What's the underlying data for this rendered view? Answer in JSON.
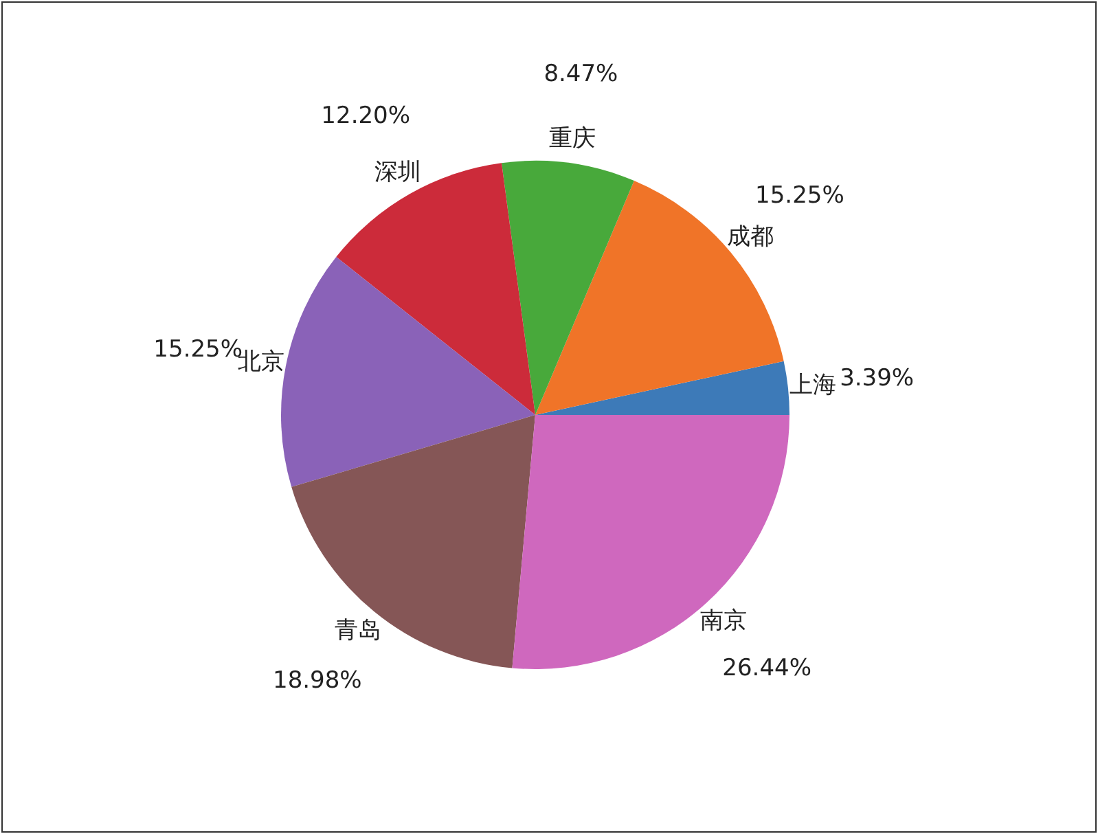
{
  "chart_data": {
    "type": "pie",
    "categories": [
      "上海",
      "成都",
      "重庆",
      "深圳",
      "北京",
      "青岛",
      "南京"
    ],
    "values": [
      3.39,
      15.25,
      8.47,
      12.2,
      15.25,
      18.98,
      26.44
    ],
    "value_labels": [
      "3.39%",
      "15.25%",
      "8.47%",
      "12.20%",
      "15.25%",
      "18.98%",
      "26.44%"
    ],
    "colors": [
      "#3d7ab8",
      "#f07428",
      "#48a93b",
      "#cc2b3a",
      "#8a62b8",
      "#855656",
      "#cf68be"
    ]
  }
}
